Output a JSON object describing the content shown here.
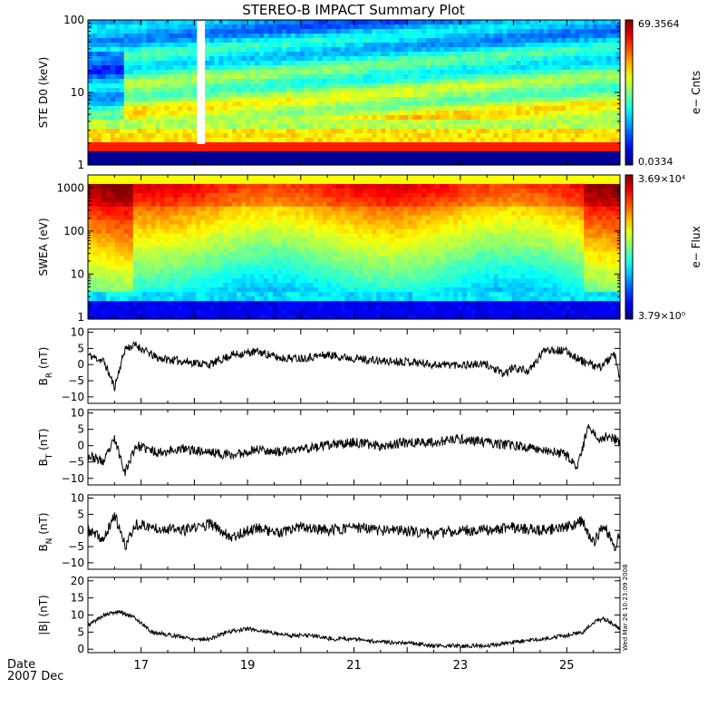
{
  "title": "STEREO-B IMPACT Summary Plot",
  "footer": {
    "date_label": "Date",
    "month_label": "2007 Dec"
  },
  "side_stamp": "Wed Mar 26 10:23:09 2008",
  "colors": {
    "axis": "#000000",
    "trace": "#000000",
    "background": "#ffffff"
  },
  "x_axis": {
    "range_days": [
      16.0,
      26.0
    ],
    "tick_labels": [
      {
        "day": 17,
        "label": "17"
      },
      {
        "day": 19,
        "label": "19"
      },
      {
        "day": 21,
        "label": "21"
      },
      {
        "day": 23,
        "label": "23"
      },
      {
        "day": 25,
        "label": "25"
      }
    ],
    "minor_step_days": 0.5
  },
  "chart_data": [
    {
      "type": "heatmap",
      "ylabel": "STE D0 (keV)",
      "yscale": "log",
      "ylim": [
        1,
        100
      ],
      "y_ticks": [
        {
          "v": 1,
          "label": "1"
        },
        {
          "v": 10,
          "label": "10"
        },
        {
          "v": 100,
          "label": "100"
        }
      ],
      "colorbar": {
        "label": "e− Cnts",
        "max_label": "69.3564",
        "min_label": "0.0334"
      },
      "data_gap_days": [
        18.05,
        18.2
      ]
    },
    {
      "type": "heatmap",
      "ylabel": "SWEA (eV)",
      "yscale": "log",
      "ylim": [
        0.9,
        2000
      ],
      "y_ticks": [
        {
          "v": 1,
          "label": "1"
        },
        {
          "v": 10,
          "label": "10"
        },
        {
          "v": 100,
          "label": "100"
        },
        {
          "v": 1000,
          "label": "1000"
        }
      ],
      "colorbar": {
        "label": "e− Flux",
        "max_label": "3.69×10⁴",
        "min_label": "3.79×10⁰"
      }
    },
    {
      "type": "line",
      "ylabel": "B",
      "ylabel_sub": "R",
      "ylabel_unit": " (nT)",
      "ylim": [
        -12,
        11
      ],
      "y_ticks": [
        {
          "v": -10,
          "label": "−10"
        },
        {
          "v": -5,
          "label": "−5"
        },
        {
          "v": 0,
          "label": "0"
        },
        {
          "v": 5,
          "label": "5"
        },
        {
          "v": 10,
          "label": "10"
        }
      ],
      "seed": 11,
      "noise": 1.3,
      "x": [
        16.0,
        16.3,
        16.5,
        16.7,
        16.9,
        17.3,
        17.8,
        18.3,
        18.7,
        19.2,
        19.6,
        20.0,
        20.5,
        21.0,
        21.5,
        22.0,
        22.5,
        23.0,
        23.5,
        23.8,
        24.0,
        24.3,
        24.6,
        25.0,
        25.3,
        25.6,
        25.9,
        26.0
      ],
      "values": [
        3,
        1,
        -7,
        5,
        6,
        2,
        1,
        0,
        3,
        4,
        2,
        2,
        3,
        2,
        1,
        1,
        0,
        0,
        0,
        -3,
        -1,
        -2,
        5,
        4,
        1,
        -1,
        3,
        -5
      ]
    },
    {
      "type": "line",
      "ylabel": "B",
      "ylabel_sub": "T",
      "ylabel_unit": " (nT)",
      "ylim": [
        -12,
        11
      ],
      "y_ticks": [
        {
          "v": -10,
          "label": "−10"
        },
        {
          "v": -5,
          "label": "−5"
        },
        {
          "v": 0,
          "label": "0"
        },
        {
          "v": 5,
          "label": "5"
        },
        {
          "v": 10,
          "label": "10"
        }
      ],
      "seed": 23,
      "noise": 1.5,
      "x": [
        16.0,
        16.3,
        16.5,
        16.7,
        16.9,
        17.3,
        17.8,
        18.3,
        18.7,
        19.2,
        19.6,
        20.0,
        20.5,
        21.0,
        21.5,
        22.0,
        22.5,
        23.0,
        23.5,
        24.0,
        24.5,
        25.0,
        25.2,
        25.4,
        25.6,
        25.8,
        26.0
      ],
      "values": [
        -3,
        -5,
        2,
        -8,
        0,
        -2,
        -1,
        -2,
        -3,
        -1,
        -2,
        -1,
        0,
        1,
        0,
        1,
        1,
        2,
        1,
        0,
        -1,
        -3,
        -7,
        6,
        2,
        3,
        1
      ]
    },
    {
      "type": "line",
      "ylabel": "B",
      "ylabel_sub": "N",
      "ylabel_unit": " (nT)",
      "ylim": [
        -12,
        11
      ],
      "y_ticks": [
        {
          "v": -10,
          "label": "−10"
        },
        {
          "v": -5,
          "label": "−5"
        },
        {
          "v": 0,
          "label": "0"
        },
        {
          "v": 5,
          "label": "5"
        },
        {
          "v": 10,
          "label": "10"
        }
      ],
      "seed": 37,
      "noise": 1.7,
      "x": [
        16.0,
        16.3,
        16.5,
        16.7,
        16.9,
        17.2,
        17.8,
        18.3,
        18.7,
        19.2,
        19.6,
        20.0,
        20.5,
        21.0,
        21.5,
        22.0,
        22.5,
        23.0,
        23.5,
        24.0,
        24.5,
        25.0,
        25.3,
        25.5,
        25.7,
        25.9,
        26.0
      ],
      "values": [
        0,
        -3,
        5,
        -5,
        2,
        1,
        0,
        2,
        -2,
        1,
        -1,
        1,
        0,
        1,
        0,
        0,
        -1,
        0,
        0,
        1,
        0,
        1,
        3,
        -4,
        2,
        -6,
        0
      ]
    },
    {
      "type": "line",
      "ylabel": "|B|",
      "ylabel_sub": "",
      "ylabel_unit": " (nT)",
      "ylim": [
        -1,
        21
      ],
      "y_ticks": [
        {
          "v": 0,
          "label": "0"
        },
        {
          "v": 5,
          "label": "5"
        },
        {
          "v": 10,
          "label": "10"
        },
        {
          "v": 15,
          "label": "15"
        },
        {
          "v": 20,
          "label": "20"
        }
      ],
      "seed": 5,
      "noise": 0.6,
      "x": [
        16.0,
        16.3,
        16.6,
        16.9,
        17.2,
        17.6,
        18.0,
        18.3,
        18.6,
        19.0,
        19.4,
        19.8,
        20.2,
        20.6,
        21.0,
        21.5,
        22.0,
        22.5,
        23.0,
        23.5,
        24.0,
        24.5,
        25.0,
        25.3,
        25.5,
        25.7,
        25.9,
        26.0
      ],
      "values": [
        7,
        10,
        11,
        9,
        5,
        4,
        3,
        3,
        5,
        6,
        5,
        4,
        4,
        3,
        3,
        2,
        2,
        1,
        1,
        1,
        2,
        3,
        4,
        5,
        8,
        9,
        7,
        6
      ]
    }
  ]
}
